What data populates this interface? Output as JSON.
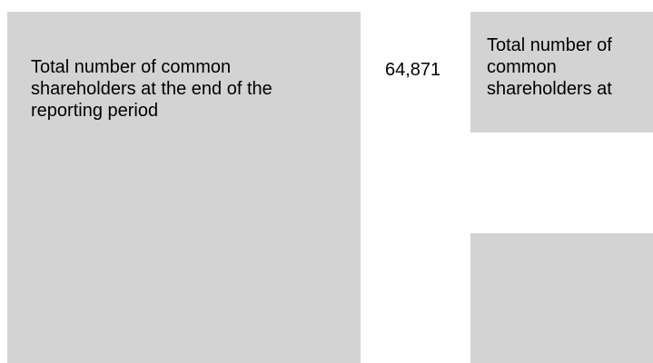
{
  "rows": [
    {
      "label": "Total number of common shareholders at the end of the reporting period",
      "value": "64,871",
      "label_repeat": "Total number of common shareholders at"
    }
  ],
  "colors": {
    "cell_background": "#d3d3d3",
    "page_background": "#ffffff",
    "text": "#000000"
  }
}
